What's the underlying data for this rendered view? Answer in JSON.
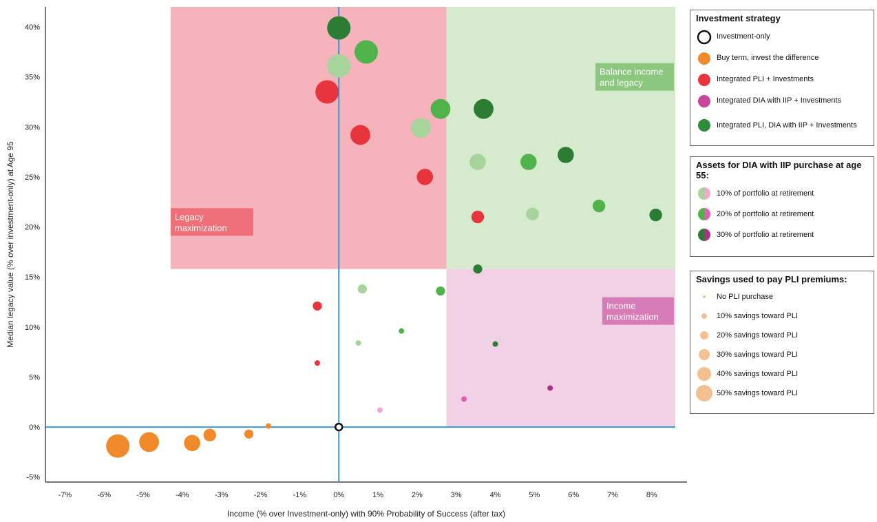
{
  "chart_data": {
    "type": "scatter",
    "xlabel": "Income (% over Investment-only) with 90% Probability of Success (after tax)",
    "ylabel": "Median legacy value (% over investment-only) at Age 95",
    "xlim": [
      -7.5,
      8.9
    ],
    "ylim": [
      -5.5,
      42
    ],
    "x_ticks": [
      {
        "v": -7,
        "label": "-7%"
      },
      {
        "v": -6,
        "label": "-6%"
      },
      {
        "v": -5,
        "label": "-5%"
      },
      {
        "v": -4,
        "label": "-4%"
      },
      {
        "v": -3,
        "label": "-3%"
      },
      {
        "v": -2,
        "label": "-2%"
      },
      {
        "v": -1,
        "label": "-1%"
      },
      {
        "v": 0,
        "label": "0%"
      },
      {
        "v": 1,
        "label": "1%"
      },
      {
        "v": 2,
        "label": "2%"
      },
      {
        "v": 3,
        "label": "3%"
      },
      {
        "v": 4,
        "label": "4%"
      },
      {
        "v": 5,
        "label": "5%"
      },
      {
        "v": 6,
        "label": "6%"
      },
      {
        "v": 7,
        "label": "7%"
      },
      {
        "v": 8,
        "label": "8%"
      }
    ],
    "y_ticks": [
      {
        "v": -5,
        "label": "-5%"
      },
      {
        "v": 0,
        "label": "0%"
      },
      {
        "v": 5,
        "label": "5%"
      },
      {
        "v": 10,
        "label": "10%"
      },
      {
        "v": 15,
        "label": "15%"
      },
      {
        "v": 20,
        "label": "20%"
      },
      {
        "v": 25,
        "label": "25%"
      },
      {
        "v": 30,
        "label": "30%"
      },
      {
        "v": 35,
        "label": "35%"
      },
      {
        "v": 40,
        "label": "40%"
      }
    ],
    "zones": [
      {
        "label": "Legacy maximization",
        "x": [
          -4.3,
          2.75
        ],
        "y": [
          15.8,
          42
        ],
        "fill": "#f4a6b0",
        "label_bg": "#ee6f77",
        "label_color": "#ffffff",
        "label_at": [
          -4.3,
          20.5
        ]
      },
      {
        "label": "Balance income and legacy",
        "x": [
          2.75,
          8.6
        ],
        "y": [
          15.8,
          42
        ],
        "fill": "#cfe8c6",
        "label_bg": "#8cc77f",
        "label_color": "#ffffff",
        "label_at": [
          6.7,
          35
        ]
      },
      {
        "label": "Income maximization",
        "x": [
          2.75,
          8.6
        ],
        "y": [
          0,
          15.8
        ],
        "fill": "#efc9e2",
        "label_bg": "#d77cb7",
        "label_color": "#ffffff",
        "label_at": [
          6.8,
          11.6
        ]
      }
    ],
    "legend_strategy": {
      "title": "Investment strategy",
      "items": [
        {
          "label": "Investment-only",
          "color": "#ffffff",
          "stroke": "#111111"
        },
        {
          "label": "Buy term, invest the difference",
          "color": "#f08a2a"
        },
        {
          "label": "Integrated PLI + Investments",
          "color": "#e8343c"
        },
        {
          "label": "Integrated DIA with IIP + Investments",
          "color": "#c9449b"
        },
        {
          "label": "Integrated PLI, DIA with IIP + Investments",
          "color": "#2e8b3a"
        }
      ]
    },
    "legend_assets": {
      "title": "Assets for DIA with IIP purchase at age 55:",
      "items": [
        {
          "label": "10% of portfolio at retirement",
          "green": "#a6d49a",
          "pink": "#f2a6d4"
        },
        {
          "label": "20% of portfolio at retirement",
          "green": "#4fb34a",
          "pink": "#e45cb2"
        },
        {
          "label": "30% of portfolio at retirement",
          "green": "#2c7d33",
          "pink": "#ad2f86"
        }
      ]
    },
    "legend_savings": {
      "title": "Savings used to pay PLI premiums:",
      "color": "#f5c08f",
      "items": [
        {
          "label": "No PLI purchase",
          "size": 0
        },
        {
          "label": "10% savings toward PLI",
          "size": 10
        },
        {
          "label": "20% savings toward PLI",
          "size": 20
        },
        {
          "label": "30% savings toward PLI",
          "size": 30
        },
        {
          "label": "40% savings toward PLI",
          "size": 40
        },
        {
          "label": "50% savings toward PLI",
          "size": 50
        }
      ]
    },
    "series": [
      {
        "name": "Investment-only",
        "color": "#ffffff",
        "stroke": "#111111",
        "points": [
          {
            "x": 0.0,
            "y": 0.0,
            "size": 0
          }
        ]
      },
      {
        "name": "Buy term, invest the difference",
        "color": "#f08a2a",
        "points": [
          {
            "x": -5.65,
            "y": -1.9,
            "size": 50
          },
          {
            "x": -4.85,
            "y": -1.5,
            "size": 40
          },
          {
            "x": -3.75,
            "y": -1.6,
            "size": 30
          },
          {
            "x": -3.3,
            "y": -0.8,
            "size": 20
          },
          {
            "x": -2.3,
            "y": -0.7,
            "size": 10
          },
          {
            "x": -1.8,
            "y": 0.1,
            "size": 0
          }
        ]
      },
      {
        "name": "Integrated PLI + Investments",
        "color": "#e8343c",
        "points": [
          {
            "x": -0.3,
            "y": 33.5,
            "size": 50
          },
          {
            "x": 0.55,
            "y": 29.2,
            "size": 40
          },
          {
            "x": 2.2,
            "y": 25.0,
            "size": 30
          },
          {
            "x": 3.55,
            "y": 21.0,
            "size": 20
          },
          {
            "x": -0.55,
            "y": 12.1,
            "size": 10
          },
          {
            "x": -0.55,
            "y": 6.4,
            "size": 0
          }
        ]
      },
      {
        "name": "Integrated DIA with IIP + Investments",
        "color": "#c9449b",
        "points": [
          {
            "x": 1.05,
            "y": 1.7,
            "level": "10%",
            "shade": "#f2a6d4",
            "size": 0
          },
          {
            "x": 3.2,
            "y": 2.8,
            "level": "20%",
            "shade": "#e45cb2",
            "size": 0
          },
          {
            "x": 5.4,
            "y": 3.9,
            "level": "30%",
            "shade": "#ad2f86",
            "size": 0
          }
        ]
      },
      {
        "name": "Integrated PLI, DIA with IIP + Investments",
        "color": "#2e8b3a",
        "points": [
          {
            "x": 0.0,
            "y": 36.1,
            "level": "10%",
            "shade": "#a6d49a",
            "size": 50
          },
          {
            "x": 2.1,
            "y": 29.9,
            "level": "10%",
            "shade": "#a6d49a",
            "size": 40
          },
          {
            "x": 3.55,
            "y": 26.5,
            "level": "10%",
            "shade": "#a6d49a",
            "size": 30
          },
          {
            "x": 4.95,
            "y": 21.3,
            "level": "10%",
            "shade": "#a6d49a",
            "size": 20
          },
          {
            "x": 0.6,
            "y": 13.8,
            "level": "10%",
            "shade": "#a6d49a",
            "size": 10
          },
          {
            "x": 0.5,
            "y": 8.4,
            "level": "10%",
            "shade": "#a6d49a",
            "size": 0
          },
          {
            "x": 0.7,
            "y": 37.5,
            "level": "20%",
            "shade": "#4fb34a",
            "size": 50
          },
          {
            "x": 2.6,
            "y": 31.8,
            "level": "20%",
            "shade": "#4fb34a",
            "size": 40
          },
          {
            "x": 4.85,
            "y": 26.5,
            "level": "20%",
            "shade": "#4fb34a",
            "size": 30
          },
          {
            "x": 6.65,
            "y": 22.1,
            "level": "20%",
            "shade": "#4fb34a",
            "size": 20
          },
          {
            "x": 2.6,
            "y": 13.6,
            "level": "20%",
            "shade": "#4fb34a",
            "size": 10
          },
          {
            "x": 1.6,
            "y": 9.6,
            "level": "20%",
            "shade": "#4fb34a",
            "size": 0
          },
          {
            "x": 0.0,
            "y": 39.9,
            "level": "30%",
            "shade": "#2c7d33",
            "size": 50
          },
          {
            "x": 3.7,
            "y": 31.8,
            "level": "30%",
            "shade": "#2c7d33",
            "size": 40
          },
          {
            "x": 5.8,
            "y": 27.2,
            "level": "30%",
            "shade": "#2c7d33",
            "size": 30
          },
          {
            "x": 8.1,
            "y": 21.2,
            "level": "30%",
            "shade": "#2c7d33",
            "size": 20
          },
          {
            "x": 3.55,
            "y": 15.8,
            "level": "30%",
            "shade": "#2c7d33",
            "size": 10
          },
          {
            "x": 4.0,
            "y": 8.3,
            "level": "30%",
            "shade": "#2c7d33",
            "size": 0
          }
        ]
      }
    ],
    "axis_color": "#1f8fe0"
  }
}
